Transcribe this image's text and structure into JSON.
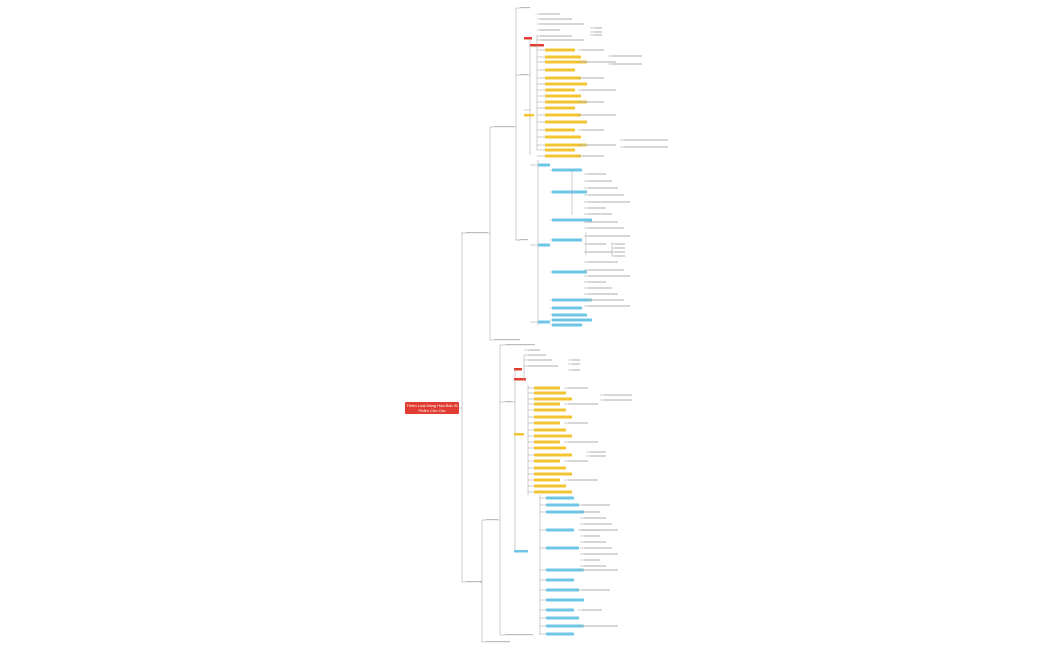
{
  "root": {
    "title": "Thêm Loại Hàng Hóa Bán Sỉ Phẩm Cho Các",
    "color": "#e03c31"
  },
  "colors": {
    "red": "#e03c31",
    "yellow": "#f4c430",
    "blue": "#6ec6e6",
    "line": "#9a9a9a",
    "leaf": "#e8e8e8"
  }
}
